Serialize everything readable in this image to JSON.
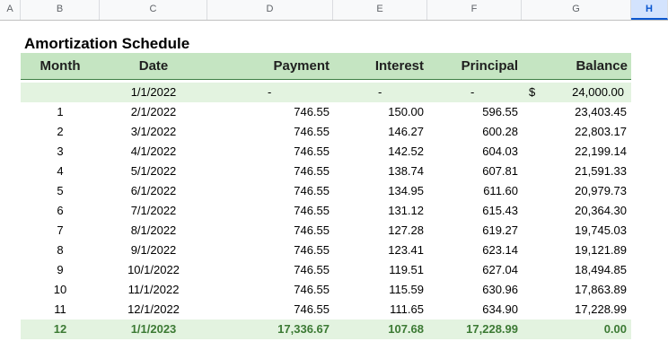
{
  "columns": [
    "A",
    "B",
    "C",
    "D",
    "E",
    "F",
    "G",
    "H"
  ],
  "selected_column": "H",
  "title": "Amortization Schedule",
  "headers": {
    "month": "Month",
    "date": "Date",
    "payment": "Payment",
    "interest": "Interest",
    "principal": "Principal",
    "balance": "Balance"
  },
  "opening_row": {
    "date": "1/1/2022",
    "payment": "-",
    "interest": "-",
    "principal": "-",
    "currency": "$",
    "balance": "24,000.00"
  },
  "rows": [
    {
      "month": "1",
      "date": "2/1/2022",
      "payment": "746.55",
      "interest": "150.00",
      "principal": "596.55",
      "balance": "23,403.45"
    },
    {
      "month": "2",
      "date": "3/1/2022",
      "payment": "746.55",
      "interest": "146.27",
      "principal": "600.28",
      "balance": "22,803.17"
    },
    {
      "month": "3",
      "date": "4/1/2022",
      "payment": "746.55",
      "interest": "142.52",
      "principal": "604.03",
      "balance": "22,199.14"
    },
    {
      "month": "4",
      "date": "5/1/2022",
      "payment": "746.55",
      "interest": "138.74",
      "principal": "607.81",
      "balance": "21,591.33"
    },
    {
      "month": "5",
      "date": "6/1/2022",
      "payment": "746.55",
      "interest": "134.95",
      "principal": "611.60",
      "balance": "20,979.73"
    },
    {
      "month": "6",
      "date": "7/1/2022",
      "payment": "746.55",
      "interest": "131.12",
      "principal": "615.43",
      "balance": "20,364.30"
    },
    {
      "month": "7",
      "date": "8/1/2022",
      "payment": "746.55",
      "interest": "127.28",
      "principal": "619.27",
      "balance": "19,745.03"
    },
    {
      "month": "8",
      "date": "9/1/2022",
      "payment": "746.55",
      "interest": "123.41",
      "principal": "623.14",
      "balance": "19,121.89"
    },
    {
      "month": "9",
      "date": "10/1/2022",
      "payment": "746.55",
      "interest": "119.51",
      "principal": "627.04",
      "balance": "18,494.85"
    },
    {
      "month": "10",
      "date": "11/1/2022",
      "payment": "746.55",
      "interest": "115.59",
      "principal": "630.96",
      "balance": "17,863.89"
    },
    {
      "month": "11",
      "date": "12/1/2022",
      "payment": "746.55",
      "interest": "111.65",
      "principal": "634.90",
      "balance": "17,228.99"
    }
  ],
  "total_row": {
    "month": "12",
    "date": "1/1/2023",
    "payment": "17,336.67",
    "interest": "107.68",
    "principal": "17,228.99",
    "balance": "0.00"
  },
  "colors": {
    "header_fill": "#c5e5c2",
    "band_fill": "#e3f3e0",
    "total_text": "#3c7a34"
  }
}
